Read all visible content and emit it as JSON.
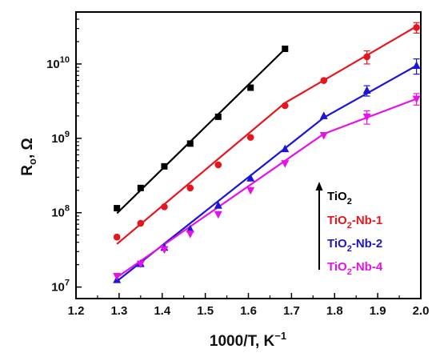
{
  "chart_data": {
    "type": "scatter",
    "xlabel": "1000/T, K",
    "xlabel_sup": "−1",
    "ylabel": "R",
    "ylabel_sub": "o",
    "ylabel_suffix": ", Ω",
    "xlim": [
      1.2,
      2.0
    ],
    "ylim": [
      7000000,
      50000000000
    ],
    "yscale": "log",
    "x_ticks": [
      "1.2",
      "1.3",
      "1.4",
      "1.5",
      "1.6",
      "1.7",
      "1.8",
      "1.9",
      "2.0"
    ],
    "y_ticks": [
      {
        "value": 10000000,
        "base": "10",
        "exp": "7"
      },
      {
        "value": 100000000,
        "base": "10",
        "exp": "8"
      },
      {
        "value": 1000000000,
        "base": "10",
        "exp": "9"
      },
      {
        "value": 10000000000,
        "base": "10",
        "exp": "10"
      }
    ],
    "legend_placement": "bottom-right",
    "legend_arrow": "up",
    "series": [
      {
        "name": "TiO2",
        "name_main": "TiO",
        "name_sub": "2",
        "name_rest": "",
        "color": "#000000",
        "marker": "square",
        "x": [
          1.295,
          1.35,
          1.405,
          1.465,
          1.53,
          1.605,
          1.685
        ],
        "y": [
          115000000,
          215000000,
          420000000,
          850000000,
          1950000000,
          4800000000,
          16000000000
        ],
        "fit_x": [
          1.295,
          1.69
        ],
        "fit_y": [
          98000000,
          17000000000
        ]
      },
      {
        "name": "TiO2-Nb-1",
        "name_main": "TiO",
        "name_sub": "2",
        "name_rest": "-Nb-1",
        "color": "#e8141e",
        "marker": "circle",
        "x": [
          1.295,
          1.35,
          1.405,
          1.465,
          1.53,
          1.605,
          1.685,
          1.775,
          1.875,
          1.99
        ],
        "y": [
          47000000,
          72000000,
          120000000,
          215000000,
          440000000,
          1030000000,
          2750000000,
          6000000000,
          12500000000,
          31000000000
        ],
        "err": [
          0,
          0,
          0,
          0,
          0,
          0,
          0,
          0,
          2500000000,
          5000000000
        ],
        "fit_x": [
          1.295,
          1.685,
          1.99
        ],
        "fit_y": [
          38000000,
          3000000000,
          32000000000
        ]
      },
      {
        "name": "TiO2-Nb-2",
        "name_main": "TiO",
        "name_sub": "2",
        "name_rest": "-Nb-2",
        "color": "#1c14d8",
        "marker": "triangle-up",
        "x": [
          1.295,
          1.35,
          1.405,
          1.465,
          1.53,
          1.605,
          1.685,
          1.775,
          1.875,
          1.99
        ],
        "y": [
          12500000,
          20500000,
          34000000,
          60000000,
          125000000,
          290000000,
          720000000,
          2000000000,
          4400000000,
          9500000000
        ],
        "err": [
          0,
          0,
          0,
          0,
          0,
          0,
          0,
          0,
          700000000,
          2200000000
        ],
        "fit_x": [
          1.295,
          1.775,
          1.99
        ],
        "fit_y": [
          12000000,
          1900000000,
          9500000000
        ]
      },
      {
        "name": "TiO2-Nb-4",
        "name_main": "TiO",
        "name_sub": "2",
        "name_rest": "-Nb-4",
        "color": "#e810e8",
        "marker": "triangle-down",
        "x": [
          1.295,
          1.35,
          1.405,
          1.465,
          1.53,
          1.605,
          1.685,
          1.775,
          1.875,
          1.99
        ],
        "y": [
          14000000,
          20500000,
          32000000,
          52000000,
          95000000,
          200000000,
          460000000,
          1100000000,
          1950000000,
          3400000000
        ],
        "err": [
          0,
          0,
          0,
          0,
          0,
          0,
          0,
          0,
          400000000,
          600000000
        ],
        "fit_x": [
          1.295,
          1.775,
          1.99
        ],
        "fit_y": [
          13500000,
          1150000000,
          3400000000
        ]
      }
    ]
  }
}
